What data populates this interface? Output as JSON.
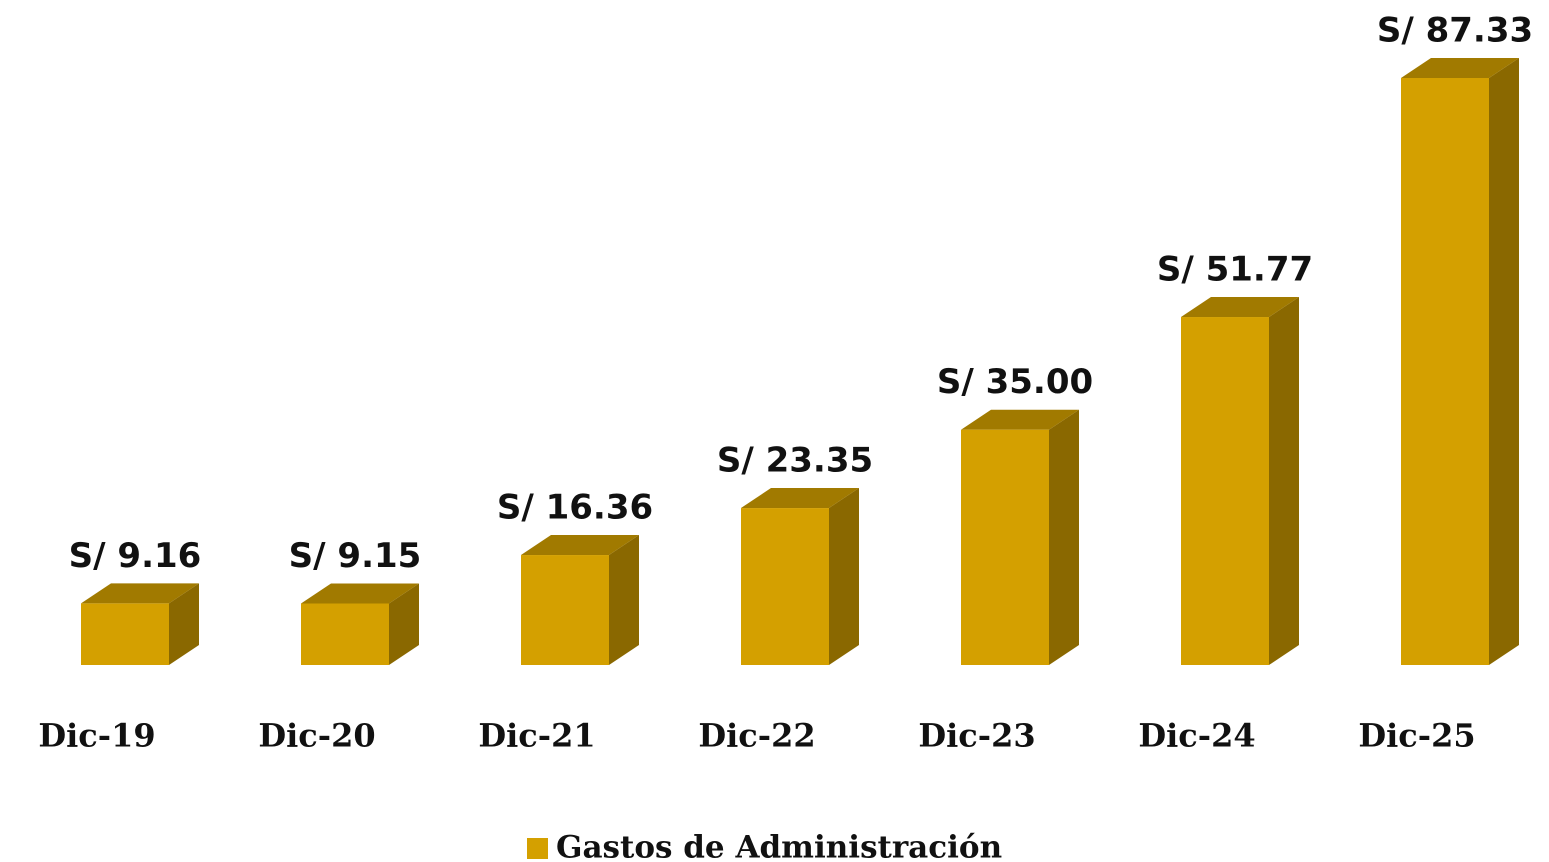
{
  "chart_data": {
    "type": "bar3d",
    "categories": [
      "Dic-19",
      "Dic-20",
      "Dic-21",
      "Dic-22",
      "Dic-23",
      "Dic-24",
      "Dic-25"
    ],
    "series": [
      {
        "name": "Gastos de Administración",
        "color": "#d4a000",
        "values": [
          9.16,
          9.15,
          16.36,
          23.35,
          35,
          51.77,
          87.33
        ],
        "value_labels": [
          "S/ 9.16",
          "S/ 9.15",
          "S/ 16.36",
          "S/ 23.35",
          "S/ 35.00",
          "S/ 51.77",
          "S/ 87.33"
        ]
      }
    ],
    "legend": "bottom"
  }
}
